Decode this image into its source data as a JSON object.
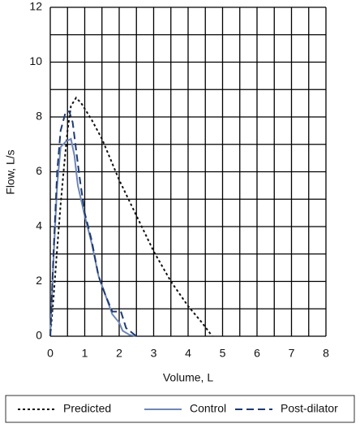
{
  "chart_data": {
    "type": "line",
    "x_label": "Volume, L",
    "y_label": "Flow, L/s",
    "xlim": [
      0,
      8
    ],
    "ylim": [
      0,
      12
    ],
    "xticks": [
      0,
      1,
      2,
      3,
      4,
      5,
      6,
      7,
      8
    ],
    "yticks": [
      0,
      2,
      4,
      6,
      8,
      10,
      12
    ],
    "xgrid": [
      0,
      0.5,
      1,
      1.5,
      2,
      2.5,
      3,
      3.5,
      4,
      4.5,
      5,
      5.5,
      6,
      6.5,
      7,
      7.5,
      8
    ],
    "ygrid": [
      0,
      1,
      2,
      3,
      4,
      5,
      6,
      7,
      8,
      9,
      10,
      11,
      12
    ],
    "grid": true,
    "legend": "bottom",
    "series": [
      {
        "name": "Predicted",
        "color": "#111111",
        "dash": "3,3",
        "x": [
          0,
          0.1,
          0.2,
          0.3,
          0.4,
          0.5,
          0.6,
          0.75,
          0.9,
          1.2,
          1.5,
          2,
          2.5,
          3,
          3.5,
          4,
          4.4,
          4.7
        ],
        "values": [
          0,
          1.5,
          3.2,
          4.8,
          6.2,
          7.5,
          8.4,
          8.7,
          8.5,
          7.9,
          7.2,
          5.7,
          4.4,
          3.1,
          2.0,
          1.1,
          0.5,
          0
        ]
      },
      {
        "name": "Control",
        "color": "#6f86b8",
        "dash": "none",
        "x": [
          0,
          0.1,
          0.2,
          0.3,
          0.45,
          0.6,
          0.7,
          0.8,
          1,
          1.2,
          1.4,
          1.6,
          1.8,
          2.0,
          2.1,
          2.3,
          2.5
        ],
        "values": [
          0,
          3,
          5.5,
          6.9,
          7.1,
          7.2,
          6.6,
          5.5,
          4.4,
          3.4,
          2.2,
          1.5,
          0.8,
          0.5,
          0.2,
          0.05,
          0
        ]
      },
      {
        "name": "Post-dilator",
        "color": "#1f3a6e",
        "dash": "9,5",
        "x": [
          0,
          0.1,
          0.2,
          0.3,
          0.45,
          0.55,
          0.65,
          0.75,
          0.85,
          1,
          1.2,
          1.4,
          1.6,
          1.8,
          2.05,
          2.2,
          2.5
        ],
        "values": [
          0,
          3.2,
          6,
          7.5,
          8.2,
          8.2,
          7.8,
          6.8,
          5.8,
          4.5,
          3.5,
          2.2,
          1.5,
          0.9,
          0.9,
          0.3,
          0
        ]
      }
    ]
  }
}
